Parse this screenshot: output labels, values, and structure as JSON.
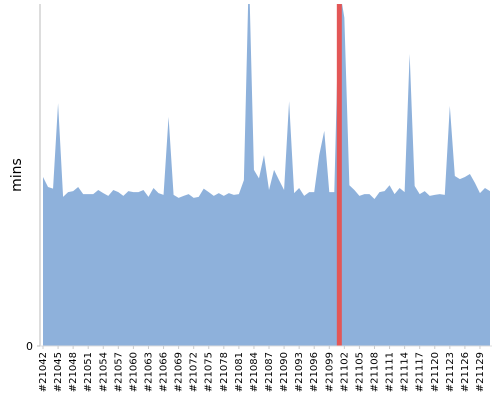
{
  "chart_data": {
    "type": "area",
    "y_label": "mins",
    "categories": [
      "#21042",
      null,
      null,
      "#21045",
      null,
      null,
      "#21048",
      null,
      null,
      "#21051",
      null,
      null,
      "#21054",
      null,
      null,
      "#21057",
      null,
      null,
      "#21060",
      null,
      null,
      "#21063",
      null,
      null,
      "#21066",
      null,
      null,
      "#21069",
      null,
      null,
      "#21072",
      null,
      null,
      "#21075",
      null,
      null,
      "#21078",
      null,
      null,
      "#21081",
      null,
      null,
      "#21084",
      null,
      null,
      "#21087",
      null,
      null,
      "#21090",
      null,
      null,
      "#21093",
      null,
      null,
      "#21096",
      null,
      null,
      "#21099",
      null,
      null,
      "#21102",
      null,
      null,
      "#21105",
      null,
      null,
      "#21108",
      null,
      null,
      "#21111",
      null,
      null,
      "#21114",
      null,
      null,
      "#21117",
      null,
      null,
      "#21120",
      null,
      null,
      "#21123",
      null,
      null,
      "#21126",
      null,
      null,
      "#21129",
      null,
      null
    ],
    "values": [
      49.4,
      46.5,
      46,
      71,
      43.6,
      45,
      45.3,
      46.5,
      44.4,
      44.4,
      44.4,
      45.6,
      44.7,
      43.9,
      45.6,
      45,
      43.9,
      45.3,
      45,
      45,
      45.6,
      43.6,
      46.2,
      44.7,
      44.2,
      67,
      44.2,
      43.3,
      43.9,
      44.4,
      43.3,
      43.6,
      46,
      45,
      43.9,
      44.7,
      43.9,
      44.7,
      44.2,
      44.4,
      48.5,
      110,
      51.5,
      49,
      55.8,
      45.6,
      51.5,
      48.5,
      45.6,
      71.6,
      44.7,
      46.2,
      43.9,
      45,
      45,
      55.8,
      62.9,
      45,
      45,
      105,
      96,
      47,
      45.6,
      43.9,
      44.4,
      44.4,
      43,
      45,
      45.3,
      47,
      44.4,
      46.2,
      45,
      85.4,
      46.8,
      44.4,
      45.3,
      43.9,
      44.2,
      44.4,
      44.2,
      70.2,
      49.7,
      48.8,
      49.4,
      50.3,
      47.7,
      44.7,
      46.2,
      45.3
    ],
    "color": "#8eb1db",
    "ylim": [
      0,
      100
    ],
    "yticks": [
      0
    ],
    "highlight_index": 59,
    "highlight_color": "#e35757"
  }
}
